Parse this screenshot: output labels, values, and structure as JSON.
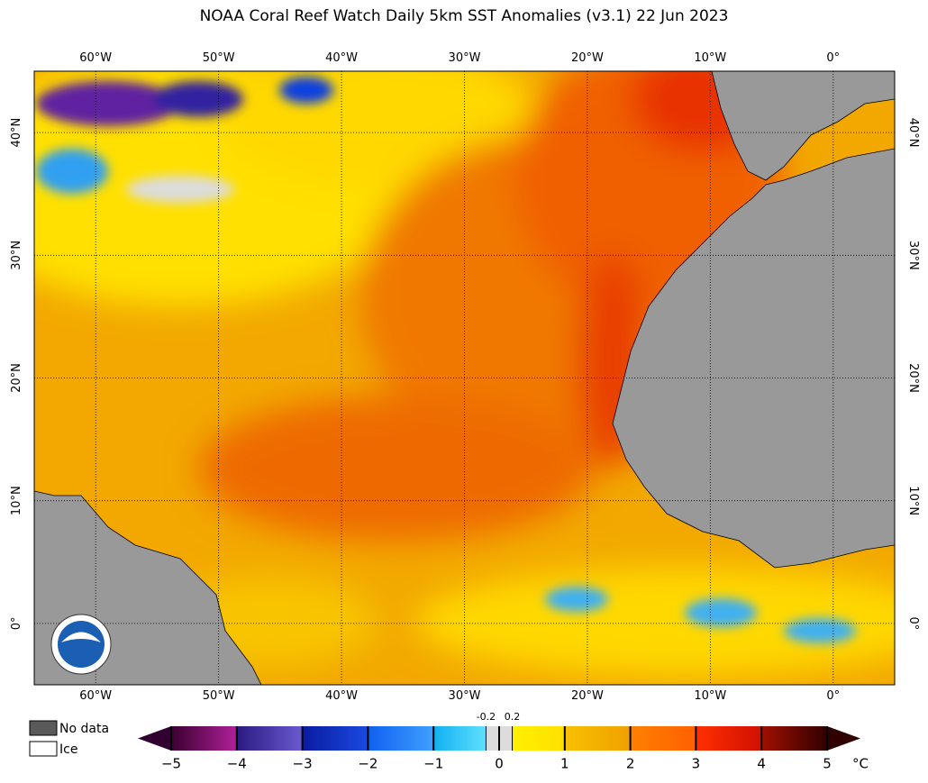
{
  "map": {
    "title": "NOAA Coral Reef Watch Daily 5km SST Anomalies  (v3.1)   22 Jun 2023",
    "xlim": [
      -65,
      5
    ],
    "ylim": [
      -5,
      45
    ],
    "xticks": [
      {
        "value": -60,
        "label": "60°W"
      },
      {
        "value": -50,
        "label": "50°W"
      },
      {
        "value": -40,
        "label": "40°W"
      },
      {
        "value": -30,
        "label": "30°W"
      },
      {
        "value": -20,
        "label": "20°W"
      },
      {
        "value": -10,
        "label": "10°W"
      },
      {
        "value": 0,
        "label": "0°"
      }
    ],
    "yticks": [
      {
        "value": 0,
        "label": "0°"
      },
      {
        "value": 10,
        "label": "10°N"
      },
      {
        "value": 20,
        "label": "20°N"
      },
      {
        "value": 30,
        "label": "30°N"
      },
      {
        "value": 40,
        "label": "40°N"
      }
    ],
    "grid": true
  },
  "colorbar": {
    "lim": [
      -5,
      5
    ],
    "ticks": [
      {
        "value": -5,
        "label": "−5"
      },
      {
        "value": -4,
        "label": "−4"
      },
      {
        "value": -3,
        "label": "−3"
      },
      {
        "value": -2,
        "label": "−2"
      },
      {
        "value": -1,
        "label": "−1"
      },
      0,
      1,
      2,
      3,
      4,
      5
    ],
    "minor_ticks": [
      -0.2,
      0.2
    ],
    "unit": "°C"
  },
  "legend": [
    {
      "name": "No data",
      "color": "#595959"
    },
    {
      "name": "Ice",
      "color": "#ffffff"
    }
  ]
}
